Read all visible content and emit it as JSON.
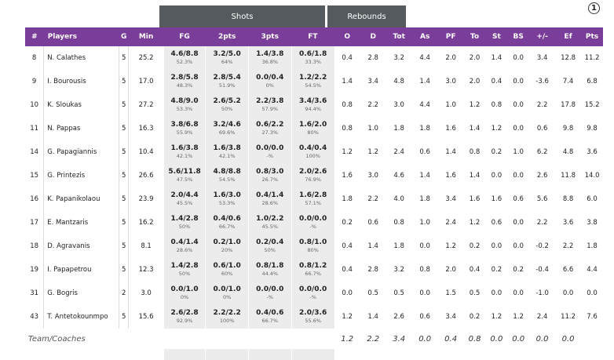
{
  "header_groups": {
    "shots": "Shots",
    "rebounds": "Rebounds"
  },
  "info_icon": {
    "glyph": "1"
  },
  "columns": {
    "num": "#",
    "players": "Players",
    "g": "G",
    "min": "Min",
    "fg": "FG",
    "two": "2pts",
    "three": "3pts",
    "ft": "FT",
    "o": "O",
    "d": "D",
    "tot": "Tot",
    "as": "As",
    "pf": "PF",
    "to": "To",
    "st": "St",
    "bs": "BS",
    "pm": "+/-",
    "ef": "Ef",
    "pts": "Pts"
  },
  "rows": [
    {
      "num": "8",
      "name": "N. Calathes",
      "g": "5",
      "min": "25.2",
      "fg": "4.6/8.8",
      "fg_pct": "52.3%",
      "two": "3.2/5.0",
      "two_pct": "64%",
      "three": "1.4/3.8",
      "three_pct": "36.8%",
      "ft": "0.6/1.8",
      "ft_pct": "33.3%",
      "o": "0.4",
      "d": "2.8",
      "tot": "3.2",
      "as": "4.4",
      "pf": "2.0",
      "to": "2.0",
      "st": "1.4",
      "bs": "0.0",
      "pm": "3.4",
      "ef": "12.8",
      "pts": "11.2"
    },
    {
      "num": "9",
      "name": "I. Bourousis",
      "g": "5",
      "min": "17.0",
      "fg": "2.8/5.8",
      "fg_pct": "48.3%",
      "two": "2.8/5.4",
      "two_pct": "51.9%",
      "three": "0.0/0.4",
      "three_pct": "0%",
      "ft": "1.2/2.2",
      "ft_pct": "54.5%",
      "o": "1.4",
      "d": "3.4",
      "tot": "4.8",
      "as": "1.4",
      "pf": "3.0",
      "to": "2.0",
      "st": "0.4",
      "bs": "0.0",
      "pm": "-3.6",
      "ef": "7.4",
      "pts": "6.8"
    },
    {
      "num": "10",
      "name": "K. Sloukas",
      "g": "5",
      "min": "27.2",
      "fg": "4.8/9.0",
      "fg_pct": "53.3%",
      "two": "2.6/5.2",
      "two_pct": "50%",
      "three": "2.2/3.8",
      "three_pct": "57.9%",
      "ft": "3.4/3.6",
      "ft_pct": "94.4%",
      "o": "0.8",
      "d": "2.2",
      "tot": "3.0",
      "as": "4.4",
      "pf": "1.0",
      "to": "1.2",
      "st": "0.8",
      "bs": "0.0",
      "pm": "2.2",
      "ef": "17.8",
      "pts": "15.2"
    },
    {
      "num": "11",
      "name": "N. Pappas",
      "g": "5",
      "min": "16.3",
      "fg": "3.8/6.8",
      "fg_pct": "55.9%",
      "two": "3.2/4.6",
      "two_pct": "69.6%",
      "three": "0.6/2.2",
      "three_pct": "27.3%",
      "ft": "1.6/2.0",
      "ft_pct": "80%",
      "o": "0.8",
      "d": "1.0",
      "tot": "1.8",
      "as": "1.8",
      "pf": "1.6",
      "to": "1.4",
      "st": "1.2",
      "bs": "0.0",
      "pm": "0.6",
      "ef": "9.8",
      "pts": "9.8"
    },
    {
      "num": "14",
      "name": "G. Papagiannis",
      "g": "5",
      "min": "10.4",
      "fg": "1.6/3.8",
      "fg_pct": "42.1%",
      "two": "1.6/3.8",
      "two_pct": "42.1%",
      "three": "0.0/0.0",
      "three_pct": "-%",
      "ft": "0.4/0.4",
      "ft_pct": "100%",
      "o": "1.2",
      "d": "1.2",
      "tot": "2.4",
      "as": "0.6",
      "pf": "1.4",
      "to": "0.8",
      "st": "0.2",
      "bs": "1.0",
      "pm": "6.2",
      "ef": "4.8",
      "pts": "3.6"
    },
    {
      "num": "15",
      "name": "G. Printezis",
      "g": "5",
      "min": "26.6",
      "fg": "5.6/11.8",
      "fg_pct": "47.5%",
      "two": "4.8/8.8",
      "two_pct": "54.5%",
      "three": "0.8/3.0",
      "three_pct": "26.7%",
      "ft": "2.0/2.6",
      "ft_pct": "76.9%",
      "o": "1.6",
      "d": "3.0",
      "tot": "4.6",
      "as": "1.4",
      "pf": "1.6",
      "to": "1.4",
      "st": "0.0",
      "bs": "0.0",
      "pm": "2.6",
      "ef": "11.8",
      "pts": "14.0"
    },
    {
      "num": "16",
      "name": "K. Papanikolaou",
      "g": "5",
      "min": "23.9",
      "fg": "2.0/4.4",
      "fg_pct": "45.5%",
      "two": "1.6/3.0",
      "two_pct": "53.3%",
      "three": "0.4/1.4",
      "three_pct": "28.6%",
      "ft": "1.6/2.8",
      "ft_pct": "57.1%",
      "o": "1.8",
      "d": "2.2",
      "tot": "4.0",
      "as": "1.8",
      "pf": "3.4",
      "to": "1.6",
      "st": "1.6",
      "bs": "0.6",
      "pm": "5.6",
      "ef": "8.8",
      "pts": "6.0"
    },
    {
      "num": "17",
      "name": "E. Mantzaris",
      "g": "5",
      "min": "16.2",
      "fg": "1.4/2.8",
      "fg_pct": "50%",
      "two": "0.4/0.6",
      "two_pct": "66.7%",
      "three": "1.0/2.2",
      "three_pct": "45.5%",
      "ft": "0.0/0.0",
      "ft_pct": "-%",
      "o": "0.2",
      "d": "0.6",
      "tot": "0.8",
      "as": "1.0",
      "pf": "2.4",
      "to": "1.2",
      "st": "0.6",
      "bs": "0.0",
      "pm": "2.2",
      "ef": "3.6",
      "pts": "3.8"
    },
    {
      "num": "18",
      "name": "D. Agravanis",
      "g": "5",
      "min": "8.1",
      "fg": "0.4/1.4",
      "fg_pct": "28.6%",
      "two": "0.2/1.0",
      "two_pct": "20%",
      "three": "0.2/0.4",
      "three_pct": "50%",
      "ft": "0.8/1.0",
      "ft_pct": "80%",
      "o": "0.4",
      "d": "1.4",
      "tot": "1.8",
      "as": "0.0",
      "pf": "1.2",
      "to": "0.2",
      "st": "0.0",
      "bs": "0.0",
      "pm": "-0.2",
      "ef": "2.2",
      "pts": "1.8"
    },
    {
      "num": "19",
      "name": "I. Papapetrou",
      "g": "5",
      "min": "12.3",
      "fg": "1.4/2.8",
      "fg_pct": "50%",
      "two": "0.6/1.0",
      "two_pct": "60%",
      "three": "0.8/1.8",
      "three_pct": "44.4%",
      "ft": "0.8/1.2",
      "ft_pct": "66.7%",
      "o": "0.4",
      "d": "2.8",
      "tot": "3.2",
      "as": "0.8",
      "pf": "2.0",
      "to": "0.4",
      "st": "0.2",
      "bs": "0.2",
      "pm": "-0.4",
      "ef": "6.6",
      "pts": "4.4"
    },
    {
      "num": "31",
      "name": "G. Bogris",
      "g": "2",
      "min": "3.0",
      "fg": "0.0/1.0",
      "fg_pct": "0%",
      "two": "0.0/1.0",
      "two_pct": "0%",
      "three": "0.0/0.0",
      "three_pct": "-%",
      "ft": "0.0/0.0",
      "ft_pct": "-%",
      "o": "0.0",
      "d": "0.5",
      "tot": "0.5",
      "as": "0.0",
      "pf": "1.5",
      "to": "0.5",
      "st": "0.0",
      "bs": "0.0",
      "pm": "-1.0",
      "ef": "0.0",
      "pts": "0.0"
    },
    {
      "num": "43",
      "name": "T. Antetokounmpo",
      "g": "5",
      "min": "15.6",
      "fg": "2.6/2.8",
      "fg_pct": "92.9%",
      "two": "2.2/2.2",
      "two_pct": "100%",
      "three": "0.4/0.6",
      "three_pct": "66.7%",
      "ft": "2.0/3.6",
      "ft_pct": "55.6%",
      "o": "1.2",
      "d": "1.4",
      "tot": "2.6",
      "as": "0.6",
      "pf": "3.4",
      "to": "0.2",
      "st": "1.2",
      "bs": "1.2",
      "pm": "2.4",
      "ef": "11.2",
      "pts": "7.6"
    }
  ],
  "team": {
    "label": "Team/Coaches",
    "o": "1.2",
    "d": "2.2",
    "tot": "3.4",
    "as": "0.0",
    "pf": "0.4",
    "to": "0.8",
    "st": "0.0",
    "bs": "0.0",
    "pm": "0.0",
    "ef": "0.0"
  },
  "colors": {
    "header_purple": "#7a3d99",
    "group_gray": "#545a5e",
    "shot_cell": "#ececec"
  }
}
